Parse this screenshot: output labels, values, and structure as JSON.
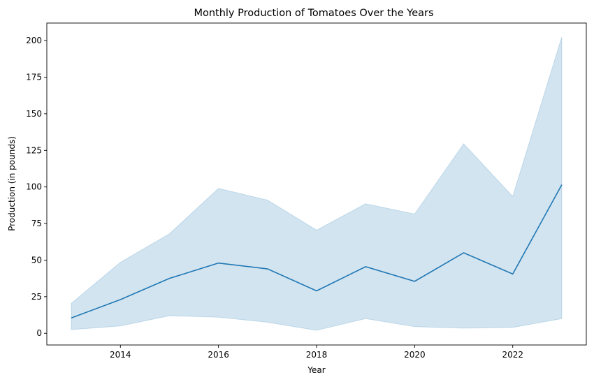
{
  "chart_data": {
    "type": "line",
    "title": "Monthly Production of Tomatoes Over the Years",
    "xlabel": "Year",
    "ylabel": "Production (in pounds)",
    "xlim": [
      2012.5,
      2023.5
    ],
    "ylim": [
      -8,
      212
    ],
    "x_ticks": [
      2014,
      2016,
      2018,
      2020,
      2022
    ],
    "y_ticks": [
      0,
      25,
      50,
      75,
      100,
      125,
      150,
      175,
      200
    ],
    "grid": false,
    "legend": "none",
    "series": [
      {
        "x": [
          2013,
          2014,
          2015,
          2016,
          2017,
          2018,
          2019,
          2020,
          2021,
          2022,
          2023
        ],
        "values": [
          10.5,
          23,
          37.5,
          48,
          44,
          29,
          45.5,
          35.5,
          55,
          40.5,
          101.5
        ],
        "ci_upper": [
          20.5,
          48.5,
          68,
          99,
          91,
          70.5,
          88.5,
          81.5,
          129.5,
          93.5,
          202.5
        ],
        "ci_lower": [
          2.5,
          5,
          12,
          11,
          7.5,
          2,
          10,
          4.5,
          3.5,
          4,
          10
        ],
        "color": "#1f77b4"
      }
    ]
  }
}
